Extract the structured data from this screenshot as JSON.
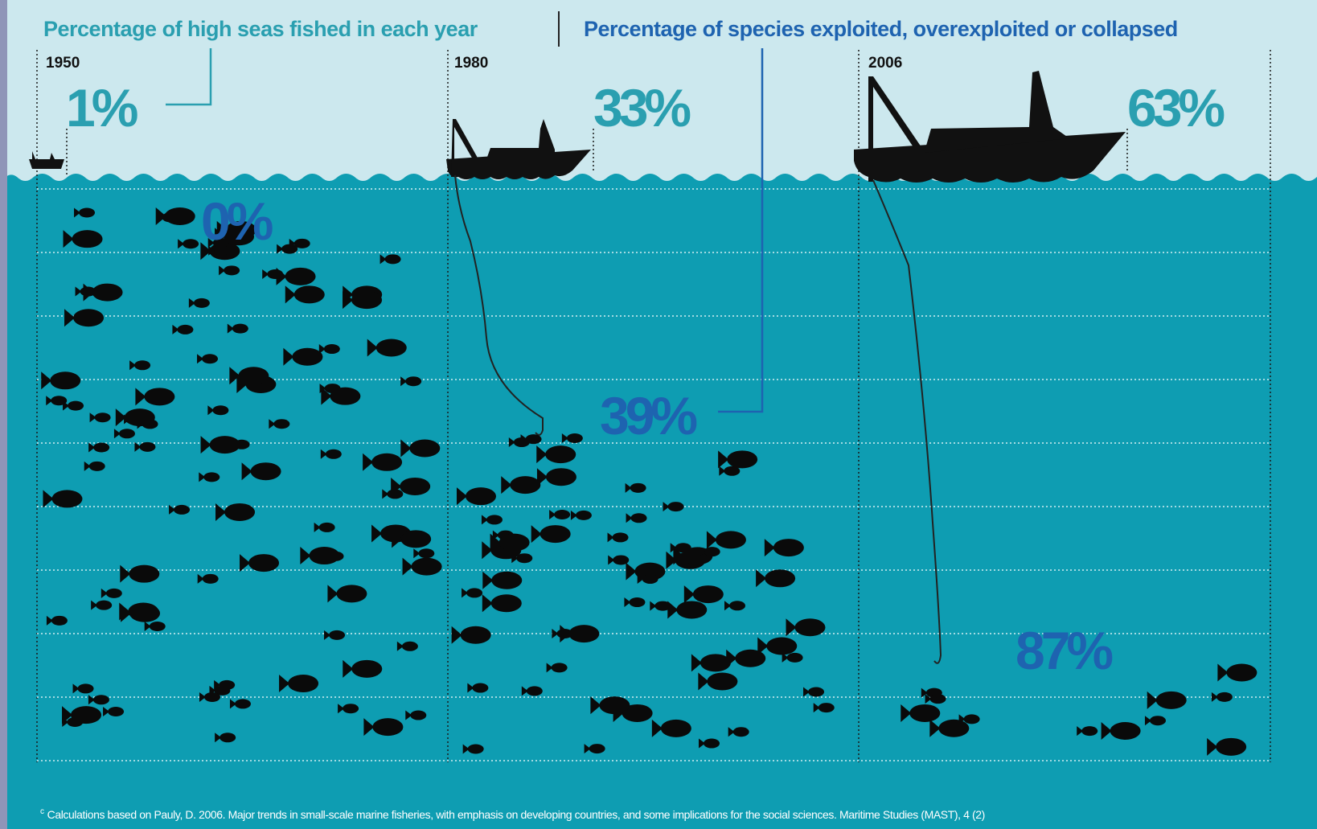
{
  "header": {
    "left_title": "Percentage of high seas fished in each year",
    "right_title": "Percentage of species exploited, overexploited or collapsed"
  },
  "panels": [
    {
      "year": "1950",
      "high_seas": "1%",
      "species": "0%"
    },
    {
      "year": "1980",
      "high_seas": "33%",
      "species": "39%"
    },
    {
      "year": "2006",
      "high_seas": "63%",
      "species": "87%"
    }
  ],
  "footnote": {
    "mark": "c",
    "text": "Calculations based on Pauly, D. 2006. Major trends in small-scale marine fisheries, with emphasis on developing countries, and some implications for the social sciences. Maritime Studies (MAST), 4 (2)"
  }
}
